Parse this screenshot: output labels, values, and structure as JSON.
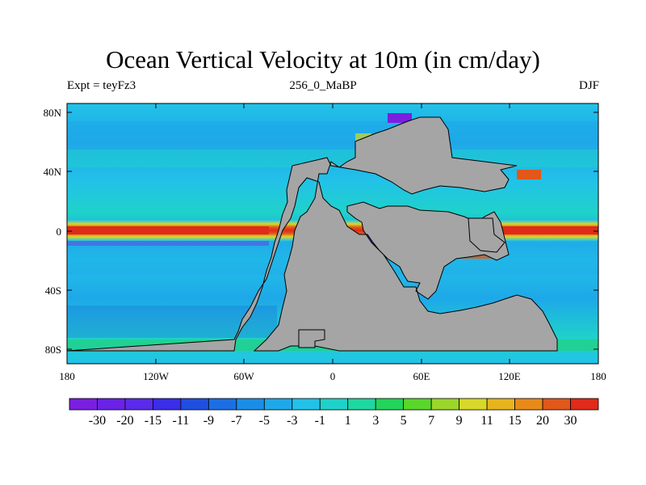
{
  "title": "Ocean Vertical Velocity at 10m (in cm/day)",
  "subtitle_left": "Expt = teyFz3",
  "subtitle_center": "256_0_MaBP",
  "subtitle_right": "DJF",
  "x_axis": {
    "ticks": [
      "180",
      "120W",
      "60W",
      "0",
      "60E",
      "120E",
      "180"
    ],
    "range": [
      -180,
      180
    ]
  },
  "y_axis": {
    "ticks": [
      "80N",
      "40N",
      "0",
      "40S",
      "80S"
    ],
    "range": [
      -90,
      90
    ]
  },
  "colorbar": {
    "labels": [
      "-30",
      "-20",
      "-15",
      "-11",
      "-9",
      "-7",
      "-5",
      "-3",
      "-1",
      "1",
      "3",
      "5",
      "7",
      "9",
      "11",
      "15",
      "20",
      "30"
    ],
    "colors": [
      "#7a1fe0",
      "#6a22e6",
      "#5a2bea",
      "#3a2ee8",
      "#1f4fe0",
      "#1c6fe3",
      "#1a8ee6",
      "#1ea8e8",
      "#22c2e8",
      "#1fd2c9",
      "#1fd7a0",
      "#22d45a",
      "#5ad62a",
      "#9bd62a",
      "#d8d82a",
      "#e8b41e",
      "#e88a1a",
      "#e0581a",
      "#e02a1a"
    ]
  },
  "colors": {
    "ocean": "#22b4ea",
    "land": "#a5a5a5"
  }
}
